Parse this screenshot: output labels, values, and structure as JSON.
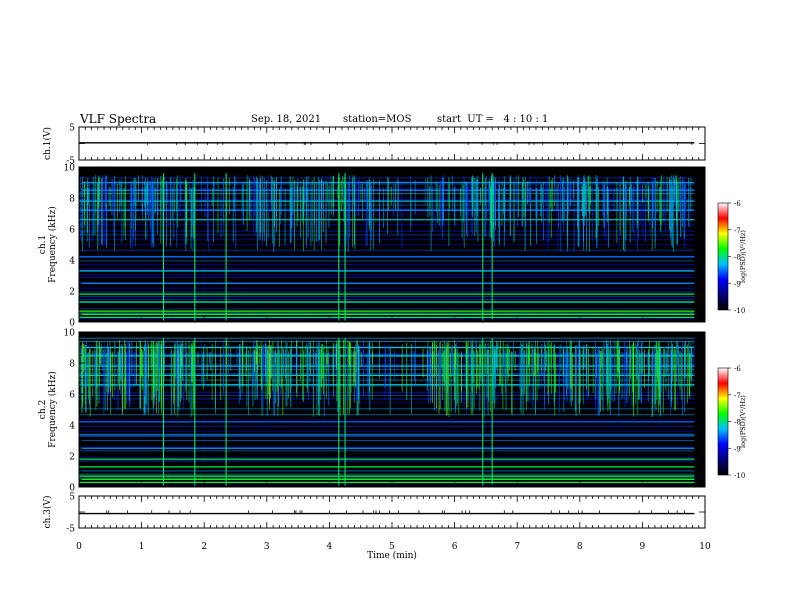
{
  "header": {
    "title": "VLF Spectra",
    "date": "Sep. 18, 2021",
    "station": "station=MOS",
    "start": "start  UT =   4 : 10 : 1"
  },
  "chart_data": [
    {
      "id": "ch1-voltage",
      "type": "line",
      "ylabel": "ch.1(V)",
      "ylim": [
        -5,
        5
      ],
      "yticks": [
        "5",
        "-5"
      ],
      "xlim": [
        0,
        10
      ],
      "series": [
        {
          "x": [
            0,
            9.83
          ],
          "y": [
            0.2,
            0.2
          ]
        }
      ]
    },
    {
      "id": "ch1-spectrogram",
      "type": "heatmap",
      "ylabel": "ch.1\nFrequency (kHz)",
      "ylim": [
        0,
        10
      ],
      "yticks": [
        "0",
        "2",
        "4",
        "6",
        "8",
        "10"
      ],
      "xlim": [
        0,
        10
      ],
      "colorbar": {
        "label": "log(PSD)(V²/Hz)",
        "ticks": [
          "-6",
          "-7",
          "-8",
          "-9",
          "-10"
        ],
        "range": [
          -10,
          -6
        ]
      },
      "strong_bands_khz": [
        0.3,
        0.7,
        1.3,
        1.8,
        2.5,
        3.3,
        4.2,
        6.6,
        7.2,
        7.8,
        8.5,
        9.0
      ],
      "impulses_min": [
        1.35,
        1.85,
        2.35,
        4.15,
        4.25,
        6.45,
        6.6
      ]
    },
    {
      "id": "ch2-spectrogram",
      "type": "heatmap",
      "ylabel": "ch.2\nFrequency (kHz)",
      "ylim": [
        0,
        10
      ],
      "yticks": [
        "0",
        "2",
        "4",
        "6",
        "8",
        "10"
      ],
      "xlim": [
        0,
        10
      ],
      "colorbar": {
        "label": "log(PSD)(V²/Hz)",
        "ticks": [
          "-6",
          "-7",
          "-8",
          "-9",
          "-10"
        ],
        "range": [
          -10,
          -6
        ]
      },
      "strong_bands_khz": [
        0.3,
        0.7,
        1.3,
        1.8,
        2.5,
        3.3,
        4.2,
        6.6,
        7.2,
        7.8,
        8.5,
        9.0
      ],
      "impulses_min": [
        1.35,
        1.85,
        2.35,
        4.15,
        4.25,
        6.45,
        6.6
      ]
    },
    {
      "id": "ch3-voltage",
      "type": "line",
      "ylabel": "ch.3(V)",
      "ylim": [
        -5,
        5
      ],
      "yticks": [
        "5",
        "-5"
      ],
      "xlim": [
        0,
        10
      ],
      "series": [
        {
          "x": [
            0,
            9.83
          ],
          "y": [
            -0.5,
            -0.5
          ]
        }
      ]
    }
  ],
  "x_axis": {
    "label": "Time (min)",
    "ticks": [
      "0",
      "1",
      "2",
      "3",
      "4",
      "5",
      "6",
      "7",
      "8",
      "9",
      "10"
    ],
    "range": [
      0,
      10
    ],
    "data_end": 9.83
  },
  "colors": {
    "background": "#000000",
    "axis": "#000000",
    "colormap": [
      "#000000",
      "#00007a",
      "#0000ff",
      "#00bfff",
      "#00ff00",
      "#ffff00",
      "#ff0000",
      "#ffffff"
    ]
  }
}
